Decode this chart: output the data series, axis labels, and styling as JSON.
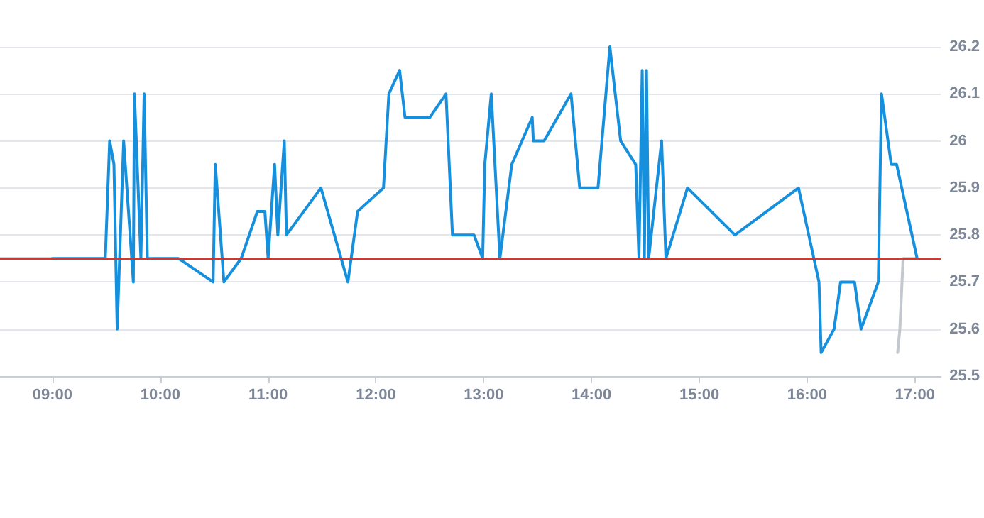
{
  "chart_data": {
    "type": "line",
    "xlim": [
      8.513,
      17.24
    ],
    "xticks": [
      {
        "value": 9,
        "label": "09:00"
      },
      {
        "value": 10,
        "label": "10:00"
      },
      {
        "value": 11,
        "label": "11:00"
      },
      {
        "value": 12,
        "label": "12:00"
      },
      {
        "value": 13,
        "label": "13:00"
      },
      {
        "value": 14,
        "label": "14:00"
      },
      {
        "value": 15,
        "label": "15:00"
      },
      {
        "value": 16,
        "label": "16:00"
      },
      {
        "value": 17,
        "label": "17:00"
      }
    ],
    "ylim": [
      25.5,
      26.2
    ],
    "yticks": [
      25.5,
      25.6,
      25.7,
      25.8,
      25.9,
      26,
      26.1,
      26.2
    ],
    "grid": "y",
    "marker": "none",
    "line_style": "solid",
    "ref_lines": [
      {
        "axis": "y",
        "value": 25.75,
        "color": "#d9342b"
      }
    ],
    "series": [
      {
        "color": "#c3c7ce",
        "x": [
          8.513,
          9.0
        ],
        "values": [
          25.75,
          25.75
        ]
      },
      {
        "color": "#c3c7ce",
        "x": [
          16.84,
          16.86,
          16.89,
          17.02
        ],
        "values": [
          25.55,
          25.6,
          25.75,
          25.75
        ]
      },
      {
        "color": "#168fdc",
        "x": [
          9.0,
          9.49,
          9.53,
          9.57,
          9.6,
          9.66,
          9.75,
          9.76,
          9.82,
          9.85,
          9.88,
          10.17,
          10.49,
          10.51,
          10.59,
          10.75,
          10.9,
          10.97,
          11.0,
          11.03,
          11.06,
          11.09,
          11.15,
          11.17,
          11.49,
          11.74,
          11.83,
          12.07,
          12.12,
          12.22,
          12.27,
          12.5,
          12.65,
          12.71,
          12.91,
          12.99,
          13.01,
          13.07,
          13.15,
          13.26,
          13.45,
          13.46,
          13.56,
          13.81,
          13.89,
          14.06,
          14.17,
          14.27,
          14.41,
          14.44,
          14.47,
          14.49,
          14.51,
          14.53,
          14.65,
          14.69,
          14.89,
          15.33,
          15.92,
          16.11,
          16.13,
          16.25,
          16.31,
          16.44,
          16.5,
          16.66,
          16.69,
          16.78,
          16.83,
          17.02
        ],
        "values": [
          25.75,
          25.75,
          26.0,
          25.95,
          25.6,
          26.0,
          25.7,
          26.1,
          25.75,
          26.1,
          25.75,
          25.75,
          25.7,
          25.95,
          25.7,
          25.75,
          25.85,
          25.85,
          25.75,
          25.85,
          25.95,
          25.8,
          26.0,
          25.8,
          25.9,
          25.7,
          25.85,
          25.9,
          26.1,
          26.15,
          26.05,
          26.05,
          26.1,
          25.8,
          25.8,
          25.75,
          25.95,
          26.1,
          25.75,
          25.95,
          26.05,
          26.0,
          26.0,
          26.1,
          25.9,
          25.9,
          26.2,
          26.0,
          25.95,
          25.75,
          26.15,
          25.75,
          26.15,
          25.75,
          26.0,
          25.75,
          25.9,
          25.8,
          25.9,
          25.7,
          25.55,
          25.6,
          25.7,
          25.7,
          25.6,
          25.7,
          26.1,
          25.95,
          25.95,
          25.75
        ]
      }
    ]
  }
}
